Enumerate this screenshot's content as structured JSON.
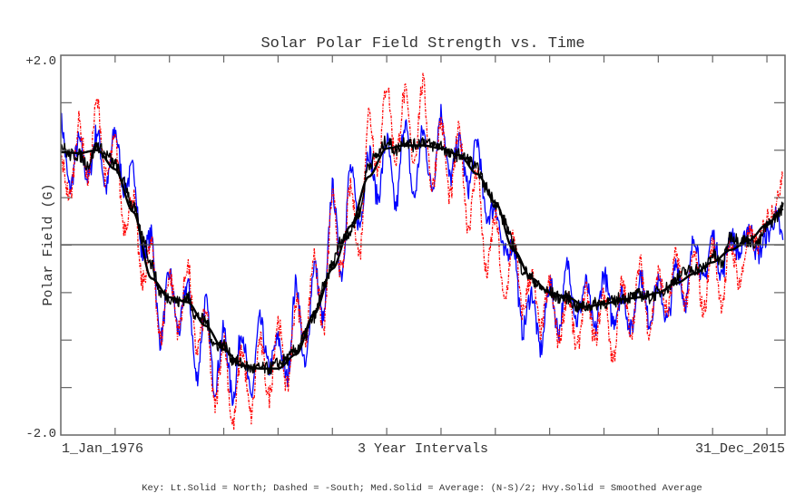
{
  "chart_data": {
    "type": "line",
    "title": "Solar Polar Field Strength vs. Time",
    "xlabel": "3 Year Intervals",
    "ylabel": "Polar Field (G)",
    "x_start_label": "1_Jan_1976",
    "x_end_label": "31_Dec_2015",
    "xlim": [
      1976.0,
      2016.0
    ],
    "x_tick_interval_years": 3,
    "x_ticks": [
      1979,
      1982,
      1985,
      1988,
      1991,
      1994,
      1997,
      2000,
      2003,
      2006,
      2009,
      2012,
      2015
    ],
    "ylim": [
      -2.0,
      2.0
    ],
    "y_tick_labels": [
      "+2.0",
      "-2.0"
    ],
    "y_ticks": [
      1.5,
      1.0,
      0.5,
      0.0,
      -0.5,
      -1.0,
      -1.5
    ],
    "zero_line": true,
    "grid": false,
    "key": "Key: Lt.Solid = North; Dashed = -South; Med.Solid = Average: (N-S)/2; Hvy.Solid = Smoothed Average",
    "series": [
      {
        "name": "North",
        "style": "light solid",
        "color": "#0000ff",
        "x": [
          1976.0,
          1976.5,
          1977.0,
          1977.5,
          1978.0,
          1978.5,
          1979.0,
          1979.5,
          1980.0,
          1980.5,
          1981.0,
          1981.5,
          1982.0,
          1982.5,
          1983.0,
          1983.5,
          1984.0,
          1984.5,
          1985.0,
          1985.5,
          1986.0,
          1986.5,
          1987.0,
          1987.5,
          1988.0,
          1988.5,
          1989.0,
          1989.5,
          1990.0,
          1990.5,
          1991.0,
          1991.5,
          1992.0,
          1992.5,
          1993.0,
          1993.5,
          1994.0,
          1994.5,
          1995.0,
          1995.5,
          1996.0,
          1996.5,
          1997.0,
          1997.5,
          1998.0,
          1998.5,
          1999.0,
          1999.5,
          2000.0,
          2000.5,
          2001.0,
          2001.5,
          2002.0,
          2002.5,
          2003.0,
          2003.5,
          2004.0,
          2004.5,
          2005.0,
          2005.5,
          2006.0,
          2006.5,
          2007.0,
          2007.5,
          2008.0,
          2008.5,
          2009.0,
          2009.5,
          2010.0,
          2010.5,
          2011.0,
          2011.5,
          2012.0,
          2012.5,
          2013.0,
          2013.5,
          2014.0,
          2014.5,
          2015.0,
          2015.5,
          2015.9
        ],
        "values": [
          1.3,
          0.6,
          1.1,
          0.7,
          1.2,
          0.6,
          1.2,
          0.6,
          0.8,
          -0.1,
          0.1,
          -1.0,
          -0.3,
          -0.9,
          -0.4,
          -1.4,
          -0.6,
          -1.5,
          -0.9,
          -1.6,
          -0.9,
          -1.6,
          -0.8,
          -1.3,
          -1.0,
          -1.4,
          -0.4,
          -1.3,
          -0.2,
          -0.8,
          0.6,
          -0.3,
          0.8,
          0.2,
          1.0,
          0.5,
          1.1,
          0.4,
          1.3,
          0.5,
          1.2,
          0.6,
          1.4,
          0.7,
          1.1,
          0.6,
          1.1,
          0.3,
          0.4,
          -0.1,
          0.0,
          -0.9,
          -0.5,
          -1.1,
          -0.4,
          -0.9,
          -0.2,
          -0.8,
          -0.4,
          -0.9,
          -0.3,
          -0.8,
          -0.5,
          -0.9,
          -0.3,
          -0.8,
          -0.4,
          -0.8,
          -0.2,
          -0.6,
          0.1,
          -0.4,
          0.1,
          -0.3,
          0.1,
          -0.1,
          0.2,
          -0.1,
          0.1,
          0.3,
          0.05
        ]
      },
      {
        "name": "-South",
        "style": "dashed",
        "color": "#ff0000",
        "x": [
          1976.0,
          1976.5,
          1977.0,
          1977.5,
          1978.0,
          1978.5,
          1979.0,
          1979.5,
          1980.0,
          1980.5,
          1981.0,
          1981.5,
          1982.0,
          1982.5,
          1983.0,
          1983.5,
          1984.0,
          1984.5,
          1985.0,
          1985.5,
          1986.0,
          1986.5,
          1987.0,
          1987.5,
          1988.0,
          1988.5,
          1989.0,
          1989.5,
          1990.0,
          1990.5,
          1991.0,
          1991.5,
          1992.0,
          1992.5,
          1993.0,
          1993.5,
          1994.0,
          1994.5,
          1995.0,
          1995.5,
          1996.0,
          1996.5,
          1997.0,
          1997.5,
          1998.0,
          1998.5,
          1999.0,
          1999.5,
          2000.0,
          2000.5,
          2001.0,
          2001.5,
          2002.0,
          2002.5,
          2003.0,
          2003.5,
          2004.0,
          2004.5,
          2005.0,
          2005.5,
          2006.0,
          2006.5,
          2007.0,
          2007.5,
          2008.0,
          2008.5,
          2009.0,
          2009.5,
          2010.0,
          2010.5,
          2011.0,
          2011.5,
          2012.0,
          2012.5,
          2013.0,
          2013.5,
          2014.0,
          2014.5,
          2015.0,
          2015.5,
          2015.9
        ],
        "values": [
          0.9,
          0.5,
          1.3,
          0.7,
          1.5,
          0.7,
          1.1,
          0.2,
          0.5,
          -0.4,
          0.0,
          -1.0,
          -0.3,
          -0.9,
          -0.2,
          -1.1,
          -0.7,
          -1.7,
          -1.0,
          -1.9,
          -1.1,
          -1.8,
          -1.0,
          -1.6,
          -0.8,
          -1.5,
          -0.6,
          -1.0,
          -0.1,
          -0.9,
          0.5,
          -0.3,
          0.6,
          -0.1,
          1.4,
          0.8,
          1.7,
          0.9,
          1.6,
          0.9,
          1.7,
          0.6,
          1.3,
          0.5,
          1.2,
          0.2,
          0.8,
          -0.3,
          0.3,
          -0.6,
          0.1,
          -0.7,
          -0.3,
          -0.9,
          -0.4,
          -1.0,
          -0.5,
          -1.1,
          -0.5,
          -1.0,
          -0.5,
          -1.2,
          -0.4,
          -0.9,
          -0.2,
          -0.9,
          -0.3,
          -0.7,
          -0.1,
          -0.6,
          -0.1,
          -0.7,
          0.0,
          -0.6,
          0.0,
          -0.4,
          0.1,
          0.0,
          0.3,
          0.4,
          0.8
        ]
      },
      {
        "name": "Average: (N-S)/2",
        "style": "medium solid",
        "color": "#000000",
        "x": [
          1976.0,
          1976.5,
          1977.0,
          1977.5,
          1978.0,
          1978.5,
          1979.0,
          1979.5,
          1980.0,
          1980.5,
          1981.0,
          1981.5,
          1982.0,
          1982.5,
          1983.0,
          1983.5,
          1984.0,
          1984.5,
          1985.0,
          1985.5,
          1986.0,
          1986.5,
          1987.0,
          1987.5,
          1988.0,
          1988.5,
          1989.0,
          1989.5,
          1990.0,
          1990.5,
          1991.0,
          1991.5,
          1992.0,
          1992.5,
          1993.0,
          1993.5,
          1994.0,
          1994.5,
          1995.0,
          1995.5,
          1996.0,
          1996.5,
          1997.0,
          1997.5,
          1998.0,
          1998.5,
          1999.0,
          1999.5,
          2000.0,
          2000.5,
          2001.0,
          2001.5,
          2002.0,
          2002.5,
          2003.0,
          2003.5,
          2004.0,
          2004.5,
          2005.0,
          2005.5,
          2006.0,
          2006.5,
          2007.0,
          2007.5,
          2008.0,
          2008.5,
          2009.0,
          2009.5,
          2010.0,
          2010.5,
          2011.0,
          2011.5,
          2012.0,
          2012.5,
          2013.0,
          2013.5,
          2014.0,
          2014.5,
          2015.0,
          2015.5,
          2015.9
        ],
        "values": [
          1.05,
          0.95,
          0.95,
          0.85,
          1.05,
          0.95,
          0.85,
          0.65,
          0.4,
          0.1,
          -0.2,
          -0.5,
          -0.55,
          -0.6,
          -0.55,
          -0.75,
          -0.8,
          -1.05,
          -1.05,
          -1.2,
          -1.25,
          -1.3,
          -1.3,
          -1.3,
          -1.25,
          -1.2,
          -1.1,
          -0.95,
          -0.75,
          -0.45,
          -0.2,
          0.05,
          0.15,
          0.35,
          0.85,
          0.95,
          1.1,
          1.0,
          1.1,
          1.05,
          1.1,
          1.05,
          1.05,
          0.95,
          0.95,
          0.9,
          0.8,
          0.6,
          0.45,
          0.25,
          0.0,
          -0.25,
          -0.35,
          -0.45,
          -0.5,
          -0.55,
          -0.55,
          -0.65,
          -0.65,
          -0.62,
          -0.6,
          -0.6,
          -0.55,
          -0.55,
          -0.52,
          -0.55,
          -0.5,
          -0.45,
          -0.35,
          -0.28,
          -0.25,
          -0.25,
          -0.1,
          -0.2,
          0.1,
          0.05,
          0.05,
          0.02,
          0.2,
          0.3,
          0.4
        ]
      },
      {
        "name": "Smoothed Average",
        "style": "heavy solid",
        "color": "#000000",
        "x": [
          1976.0,
          1977.0,
          1978.0,
          1979.0,
          1980.0,
          1981.0,
          1982.0,
          1983.0,
          1984.0,
          1985.0,
          1986.0,
          1987.0,
          1988.0,
          1989.0,
          1990.0,
          1991.0,
          1992.0,
          1993.0,
          1994.0,
          1995.0,
          1996.0,
          1997.0,
          1998.0,
          1999.0,
          2000.0,
          2001.0,
          2002.0,
          2003.0,
          2004.0,
          2005.0,
          2006.0,
          2007.0,
          2008.0,
          2009.0,
          2010.0,
          2011.0,
          2012.0,
          2013.0,
          2014.0,
          2015.0,
          2015.9
        ],
        "values": [
          0.98,
          0.97,
          1.0,
          0.8,
          0.35,
          -0.35,
          -0.55,
          -0.6,
          -0.85,
          -1.1,
          -1.27,
          -1.3,
          -1.3,
          -1.15,
          -0.72,
          -0.25,
          0.2,
          0.72,
          1.02,
          1.05,
          1.05,
          1.02,
          0.95,
          0.75,
          0.45,
          -0.05,
          -0.35,
          -0.5,
          -0.55,
          -0.65,
          -0.62,
          -0.57,
          -0.55,
          -0.5,
          -0.4,
          -0.3,
          -0.18,
          -0.05,
          0.05,
          0.22,
          0.38
        ]
      }
    ]
  }
}
